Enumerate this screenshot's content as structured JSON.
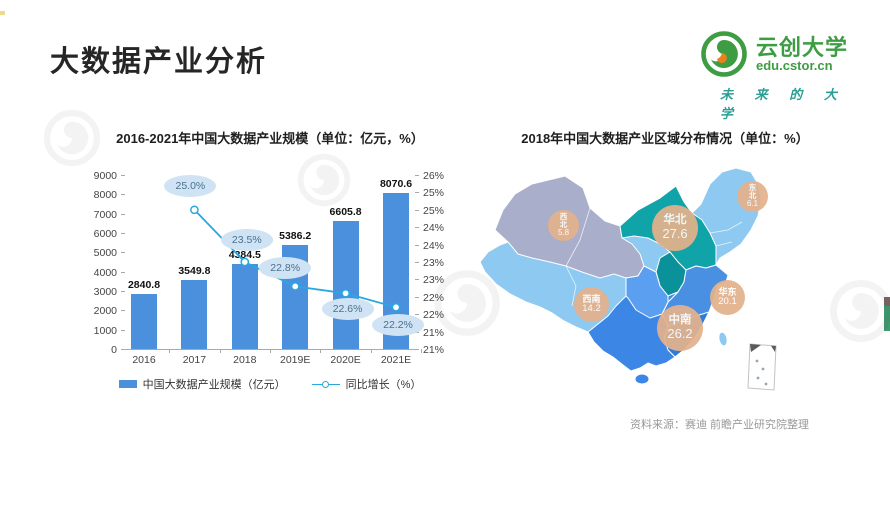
{
  "page": {
    "title": "大数据产业分析"
  },
  "logo": {
    "name": "云创大学",
    "domain": "edu.cstor.cn",
    "slogan": "未 来 的 大 学",
    "green": "#3e9c43",
    "teal": "#2aa095"
  },
  "left_chart": {
    "legend": [
      {
        "label": "中国大数据产业规模（亿元）"
      },
      {
        "label": "同比增长（%）"
      }
    ],
    "bar_color": "#4a90dd",
    "line_color": "#29a8e0",
    "callout_bg": "#cfe3f4",
    "callout_text": "#49718f"
  },
  "chart_data": [
    {
      "type": "bar",
      "title": "2016-2021年中国大数据产业规模（单位：亿元，%）",
      "categories": [
        "2016",
        "2017",
        "2018",
        "2019E",
        "2020E",
        "2021E"
      ],
      "series": [
        {
          "name": "中国大数据产业规模（亿元）",
          "type": "bar",
          "values": [
            2840.8,
            3549.8,
            4384.5,
            5386.2,
            6605.8,
            8070.6
          ]
        },
        {
          "name": "同比增长（%）",
          "type": "line",
          "values": [
            null,
            25.0,
            23.5,
            22.8,
            22.6,
            22.2
          ]
        }
      ],
      "value_labels": [
        "2840.8",
        "3549.8",
        "4384.5",
        "5386.2",
        "6605.8",
        "8070.6"
      ],
      "growth_labels": [
        "25.0%",
        "23.5%",
        "22.8%",
        "22.6%",
        "22.2%"
      ],
      "axis": {
        "left_ticks": [
          "9000",
          "8000",
          "7000",
          "6000",
          "5000",
          "4000",
          "3000",
          "2000",
          "1000",
          "0"
        ],
        "right_ticks": [
          "26%",
          "25%",
          "25%",
          "24%",
          "24%",
          "23%",
          "23%",
          "22%",
          "22%",
          "21%",
          "21%"
        ],
        "ylim_left": [
          0,
          9000
        ],
        "ylim_right": [
          21,
          26
        ]
      },
      "legend_position": "bottom",
      "grid": false
    },
    {
      "type": "choropleth-map",
      "title": "2018年中国大数据产业区域分布情况（单位：%）",
      "categories": [
        "华北",
        "中南",
        "华东",
        "西南",
        "东北",
        "西北"
      ],
      "values": [
        27.6,
        26.2,
        20.1,
        14.2,
        6.1,
        5.8
      ]
    }
  ],
  "right_chart": {
    "regions": [
      {
        "name": "华北",
        "value": "27.6"
      },
      {
        "name": "中南",
        "value": "26.2"
      },
      {
        "name": "华东",
        "value": "20.1"
      },
      {
        "name": "西南",
        "value": "14.2"
      },
      {
        "name": "东北",
        "value": "6.1"
      },
      {
        "name": "西北",
        "value": "5.8"
      }
    ],
    "label_bg": "#e3b28c",
    "map_colors": {
      "northwest": "#a9aecb",
      "base_lightblue": "#8ec9f1",
      "north_teal": "#10a3a8",
      "north_teal_dark": "#0b9199",
      "east_blue": "#4a90e2",
      "east_blue_dark": "#2f7cd6",
      "south_blue": "#3c86e6",
      "south_blue_light": "#5b9ff0"
    }
  },
  "source": "资料来源：赛迪 前瞻产业研究院整理"
}
